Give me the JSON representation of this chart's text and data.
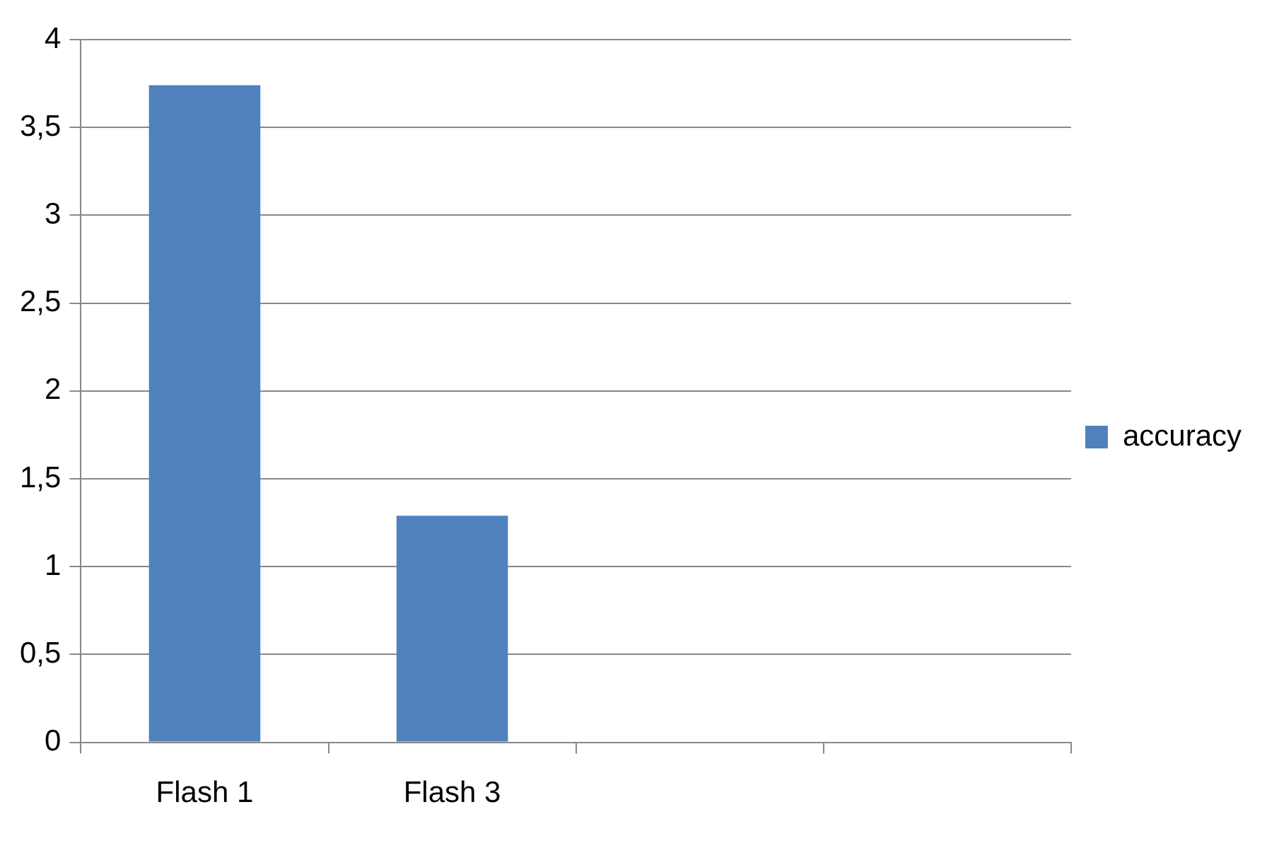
{
  "chart_data": {
    "type": "bar",
    "categories": [
      "Flash 1",
      "Flash 3",
      null,
      null
    ],
    "series": [
      {
        "name": "accuracy",
        "color": "#4f81bd",
        "values": [
          3.74,
          1.29,
          null,
          null
        ]
      }
    ],
    "ylim": [
      0,
      4
    ],
    "yticks": [
      0,
      {
        "value": 0.5,
        "label": "0,5"
      },
      1,
      {
        "value": 1.5,
        "label": "1,5"
      },
      2,
      {
        "value": 2.5,
        "label": "2,5"
      },
      3,
      {
        "value": 3.5,
        "label": "3,5"
      },
      4
    ],
    "grid": "y",
    "legend": "right"
  }
}
